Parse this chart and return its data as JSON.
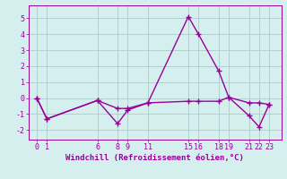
{
  "line1_x": [
    0,
    1,
    6,
    8,
    9,
    11,
    15,
    16,
    18,
    19,
    21,
    22,
    23
  ],
  "line1_y": [
    0,
    -1.3,
    -0.15,
    -1.6,
    -0.75,
    -0.3,
    5.1,
    4.0,
    1.7,
    0.05,
    -1.1,
    -1.8,
    -0.4
  ],
  "line2_x": [
    0,
    1,
    6,
    8,
    9,
    11,
    15,
    16,
    18,
    19,
    21,
    22,
    23
  ],
  "line2_y": [
    0,
    -1.3,
    -0.15,
    -0.65,
    -0.65,
    -0.3,
    -0.2,
    -0.2,
    -0.2,
    0.05,
    -0.3,
    -0.3,
    -0.4
  ],
  "line_color": "#990099",
  "bg_color": "#d5eeee",
  "grid_color": "#aacccc",
  "xtick_labels": [
    "0",
    "1",
    "6",
    "8",
    "9",
    "11",
    "15",
    "16",
    "18",
    "19",
    "21",
    "22",
    "23"
  ],
  "xtick_positions": [
    0,
    1,
    6,
    8,
    9,
    11,
    15,
    16,
    18,
    19,
    21,
    22,
    23
  ],
  "ytick_positions": [
    -2,
    -1,
    0,
    1,
    2,
    3,
    4,
    5
  ],
  "ytick_labels": [
    "-2",
    "-1",
    "0",
    "1",
    "2",
    "3",
    "4",
    "5"
  ],
  "ylim": [
    -2.6,
    5.8
  ],
  "xlim": [
    -0.8,
    24.2
  ],
  "xlabel": "Windchill (Refroidissement éolien,°C)",
  "xlabel_fontsize": 6.5,
  "tick_fontsize": 6.0,
  "marker": "+",
  "markersize": 4,
  "linewidth": 1.0
}
